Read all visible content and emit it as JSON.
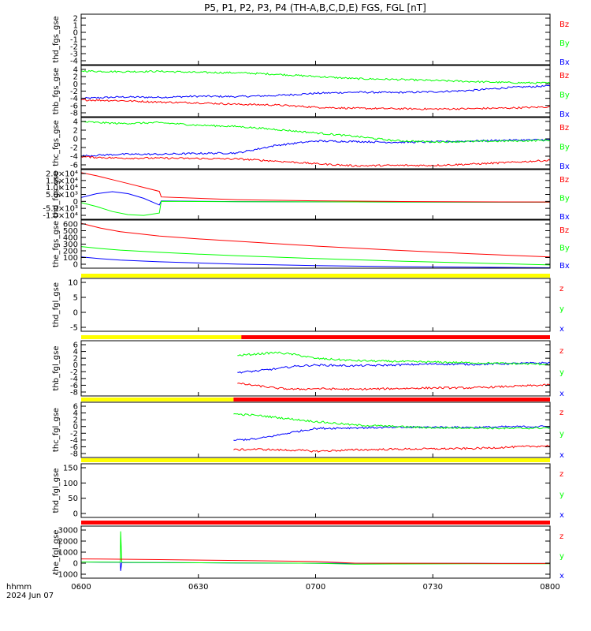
{
  "title": "P5, P1, P2, P3, P4 (TH-A,B,C,D,E) FGS, FGL [nT]",
  "time_axis": {
    "ticks": [
      "0600",
      "0630",
      "0700",
      "0730",
      "0800"
    ],
    "corner_label_1": "hhmm",
    "corner_label_2": "2024 Jun 07"
  },
  "colors": {
    "x": "#0000ff",
    "y": "#00ff00",
    "z": "#ff0000",
    "yellow": "#ffff00",
    "frame": "#000000"
  },
  "chart_data": [
    {
      "type": "line",
      "ylabel": "thd_fgs_gse",
      "yticks": [
        "2",
        "1",
        "0",
        "-1",
        "-2",
        "-3",
        "-4"
      ],
      "legend": [
        "Bz",
        "By",
        "Bx"
      ],
      "ylim": [
        -4.5,
        2.5
      ],
      "series": []
    },
    {
      "type": "line",
      "ylabel": "thb_fgs_gse",
      "yticks": [
        "4",
        "2",
        "0",
        "-2",
        "-4",
        "-6",
        "-8"
      ],
      "legend": [
        "Bz",
        "By",
        "Bx"
      ],
      "ylim": [
        -9,
        5
      ],
      "series": [
        {
          "name": "Bx",
          "x": [
            0,
            10,
            20,
            30,
            40,
            50,
            60,
            70,
            80,
            90,
            100,
            110,
            120
          ],
          "y": [
            -4,
            -3.6,
            -3.7,
            -3.4,
            -3.5,
            -3.2,
            -2.6,
            -2.3,
            -2.4,
            -2.2,
            -1.8,
            -1.0,
            -0.6
          ]
        },
        {
          "name": "By",
          "x": [
            0,
            10,
            20,
            30,
            40,
            50,
            60,
            70,
            80,
            90,
            100,
            110,
            120
          ],
          "y": [
            3.5,
            3.3,
            3.4,
            3.1,
            3.0,
            2.6,
            2.0,
            1.4,
            1.2,
            0.9,
            0.6,
            0.3,
            0.2
          ]
        },
        {
          "name": "Bz",
          "x": [
            0,
            10,
            20,
            30,
            40,
            50,
            60,
            70,
            80,
            90,
            100,
            110,
            120
          ],
          "y": [
            -4.4,
            -4.6,
            -5.0,
            -5.2,
            -5.6,
            -5.8,
            -6.4,
            -6.7,
            -6.8,
            -6.9,
            -6.8,
            -6.6,
            -6.3
          ]
        }
      ]
    },
    {
      "type": "line",
      "ylabel": "thc_fgs_gse",
      "yticks": [
        "4",
        "2",
        "0",
        "-2",
        "-4",
        "-6"
      ],
      "legend": [
        "Bz",
        "By",
        "Bx"
      ],
      "ylim": [
        -7,
        5
      ],
      "series": [
        {
          "name": "Bx",
          "x": [
            0,
            10,
            20,
            30,
            40,
            50,
            60,
            70,
            80,
            90,
            100,
            110,
            120
          ],
          "y": [
            -4,
            -3.6,
            -3.6,
            -3.4,
            -3.3,
            -1.5,
            -0.5,
            -0.6,
            -0.8,
            -0.7,
            -0.5,
            -0.3,
            -0.2
          ]
        },
        {
          "name": "By",
          "x": [
            0,
            10,
            20,
            30,
            40,
            50,
            60,
            70,
            80,
            90,
            100,
            110,
            120
          ],
          "y": [
            4,
            3.6,
            3.8,
            3.2,
            2.9,
            2.2,
            1.4,
            0.6,
            -0.4,
            -0.7,
            -0.6,
            -0.5,
            -0.3
          ]
        },
        {
          "name": "Bz",
          "x": [
            0,
            10,
            20,
            30,
            40,
            50,
            60,
            70,
            80,
            90,
            100,
            110,
            120
          ],
          "y": [
            -4.2,
            -4.5,
            -4.5,
            -4.6,
            -4.7,
            -5.2,
            -5.8,
            -6.3,
            -6.2,
            -6.2,
            -5.9,
            -5.5,
            -5.0
          ]
        }
      ]
    },
    {
      "type": "line",
      "ylabel": "thd_fgs_gse",
      "yticks": [
        "2.0×10⁴",
        "1.5×10⁴",
        "1.0×10⁴",
        "5.0×10³",
        "0",
        "-5.0×10³",
        "-1.0×10⁴"
      ],
      "legend": [
        "Bz",
        "By",
        "Bx"
      ],
      "ylim": [
        -11000,
        21000
      ],
      "series": [
        {
          "name": "Bx",
          "x": [
            0,
            4,
            8,
            12,
            16,
            20,
            20.5,
            40,
            60,
            80,
            100,
            120
          ],
          "y": [
            3000,
            5500,
            6800,
            5500,
            2500,
            -1800,
            800,
            400,
            200,
            100,
            50,
            0
          ]
        },
        {
          "name": "By",
          "x": [
            0,
            4,
            8,
            12,
            16,
            20,
            20.5,
            40,
            60,
            80,
            100,
            120
          ],
          "y": [
            -300,
            -2800,
            -6000,
            -8000,
            -8500,
            -7000,
            600,
            300,
            200,
            100,
            50,
            0
          ]
        },
        {
          "name": "Bz",
          "x": [
            0,
            4,
            8,
            12,
            16,
            20,
            20.5,
            40,
            60,
            80,
            100,
            120
          ],
          "y": [
            19000,
            17000,
            14500,
            12000,
            9500,
            7000,
            3400,
            1600,
            900,
            500,
            200,
            100
          ]
        }
      ]
    },
    {
      "type": "line",
      "ylabel": "the_fgs_gse",
      "yticks": [
        "600",
        "500",
        "400",
        "300",
        "200",
        "100",
        "0"
      ],
      "legend": [
        "Bz",
        "By",
        "Bx"
      ],
      "ylim": [
        0,
        600
      ],
      "series": [
        {
          "name": "Bx",
          "x": [
            0,
            5,
            10,
            20,
            30,
            40,
            60,
            80,
            100,
            120
          ],
          "y": [
            140,
            118,
            100,
            80,
            65,
            50,
            32,
            20,
            12,
            5
          ]
        },
        {
          "name": "By",
          "x": [
            0,
            5,
            10,
            20,
            30,
            40,
            60,
            80,
            100,
            120
          ],
          "y": [
            270,
            245,
            225,
            198,
            175,
            155,
            120,
            90,
            65,
            40
          ]
        },
        {
          "name": "Bz",
          "x": [
            0,
            5,
            10,
            20,
            30,
            40,
            60,
            80,
            100,
            120
          ],
          "y": [
            560,
            500,
            455,
            400,
            365,
            335,
            275,
            225,
            180,
            140
          ]
        }
      ]
    },
    {
      "type": "line",
      "ylabel": "thd_fgl_gse",
      "yticks": [
        "10",
        "5",
        "0",
        "-5"
      ],
      "legend": [
        "z",
        "y",
        "x"
      ],
      "ylim": [
        -7,
        12
      ],
      "series": []
    },
    {
      "type": "line",
      "ylabel": "thb_fgl_gse",
      "yticks": [
        "6",
        "4",
        "2",
        "0",
        "-2",
        "-4",
        "-6",
        "-8"
      ],
      "legend": [
        "z",
        "y",
        "x"
      ],
      "ylim": [
        -9,
        6
      ],
      "series": [
        {
          "name": "x",
          "x": [
            40,
            45,
            50,
            55,
            60,
            70,
            80,
            90,
            100,
            110,
            120
          ],
          "y": [
            -2.6,
            -2.2,
            -1.6,
            -0.9,
            -0.6,
            -0.8,
            -0.6,
            -0.3,
            -0.4,
            -0.2,
            0
          ]
        },
        {
          "name": "y",
          "x": [
            40,
            45,
            50,
            55,
            60,
            70,
            80,
            90,
            100,
            110,
            120
          ],
          "y": [
            2.0,
            2.4,
            2.8,
            2.2,
            1.2,
            0.6,
            0.4,
            0.2,
            0.0,
            -0.2,
            -0.4
          ]
        },
        {
          "name": "z",
          "x": [
            40,
            45,
            50,
            55,
            60,
            70,
            80,
            90,
            100,
            110,
            120
          ],
          "y": [
            -5.6,
            -6.2,
            -6.9,
            -7.2,
            -7.0,
            -7.2,
            -7.0,
            -6.8,
            -6.8,
            -6.4,
            -6.0
          ]
        }
      ]
    },
    {
      "type": "line",
      "ylabel": "thc_fgl_gse",
      "yticks": [
        "6",
        "4",
        "2",
        "0",
        "-2",
        "-4",
        "-6",
        "-8"
      ],
      "legend": [
        "z",
        "y",
        "x"
      ],
      "ylim": [
        -9,
        7
      ],
      "series": [
        {
          "name": "x",
          "x": [
            39,
            45,
            50,
            55,
            60,
            70,
            80,
            90,
            100,
            110,
            120
          ],
          "y": [
            -4.0,
            -3.6,
            -2.6,
            -1.5,
            -0.6,
            -0.4,
            -0.3,
            -0.2,
            -0.3,
            -0.1,
            0
          ]
        },
        {
          "name": "y",
          "x": [
            39,
            45,
            50,
            55,
            60,
            70,
            80,
            90,
            100,
            110,
            120
          ],
          "y": [
            3.6,
            3.2,
            2.6,
            2.0,
            1.4,
            0.4,
            0.0,
            -0.4,
            -0.4,
            -0.6,
            -0.4
          ]
        },
        {
          "name": "z",
          "x": [
            39,
            45,
            50,
            55,
            60,
            70,
            80,
            90,
            100,
            110,
            120
          ],
          "y": [
            -6.8,
            -6.6,
            -6.8,
            -6.9,
            -7.2,
            -6.8,
            -6.6,
            -6.5,
            -6.4,
            -6.0,
            -5.6
          ]
        }
      ]
    },
    {
      "type": "line",
      "ylabel": "thd_fgl_gse",
      "yticks": [
        "150",
        "100",
        "50",
        "0"
      ],
      "legend": [
        "z",
        "y",
        "x"
      ],
      "ylim": [
        -15,
        165
      ],
      "series": []
    },
    {
      "type": "line",
      "ylabel": "the_fgl_gse",
      "yticks": [
        "3000",
        "2000",
        "1000",
        "0",
        "-1000"
      ],
      "legend": [
        "z",
        "y",
        "x"
      ],
      "ylim": [
        -1400,
        3600
      ],
      "series": [
        {
          "name": "x",
          "x": [
            0,
            10,
            10.1,
            10.4,
            10.5,
            20,
            40,
            60,
            80,
            100,
            120
          ],
          "y": [
            150,
            120,
            -700,
            120,
            100,
            90,
            60,
            30,
            20,
            15,
            10
          ]
        },
        {
          "name": "y",
          "x": [
            0,
            10,
            10.1,
            10.4,
            10.5,
            20,
            40,
            60,
            70,
            80,
            100,
            120
          ],
          "y": [
            150,
            130,
            3100,
            130,
            120,
            90,
            60,
            30,
            -50,
            -40,
            -20,
            -10
          ]
        },
        {
          "name": "z",
          "x": [
            0,
            10,
            20,
            40,
            60,
            70,
            80,
            100,
            120
          ],
          "y": [
            450,
            420,
            380,
            300,
            200,
            40,
            30,
            20,
            10
          ]
        }
      ]
    }
  ]
}
